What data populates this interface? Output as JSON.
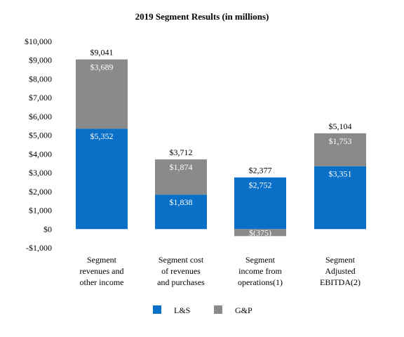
{
  "chart_data": {
    "type": "bar",
    "stacked": true,
    "title": "2019 Segment Results (in millions)",
    "categories": [
      [
        "Segment",
        "revenues and",
        "other income"
      ],
      [
        "Segment cost",
        "of revenues",
        "and purchases"
      ],
      [
        "Segment",
        "income from",
        "operations(1)"
      ],
      [
        "Segment",
        "Adjusted",
        "EBITDA(2)"
      ]
    ],
    "series": [
      {
        "name": "L&S",
        "color": "#0a6fc7",
        "values": [
          5352,
          1838,
          2752,
          3351
        ],
        "labels": [
          "$5,352",
          "$1,838",
          "$2,752",
          "$3,351"
        ]
      },
      {
        "name": "G&P",
        "color": "#8a8a8a",
        "values": [
          3689,
          1874,
          -375,
          1753
        ],
        "labels": [
          "$3,689",
          "$1,874",
          "$(375)",
          "$1,753"
        ]
      }
    ],
    "totals": [
      9041,
      3712,
      2377,
      5104
    ],
    "total_labels": [
      "$9,041",
      "$3,712",
      "$2,377",
      "$5,104"
    ],
    "ylim": [
      -1000,
      10000
    ],
    "yticks": [
      -1000,
      0,
      1000,
      2000,
      3000,
      4000,
      5000,
      6000,
      7000,
      8000,
      9000,
      10000
    ],
    "ytick_labels": [
      "-$1,000",
      "$0",
      "$1,000",
      "$2,000",
      "$3,000",
      "$4,000",
      "$5,000",
      "$6,000",
      "$7,000",
      "$8,000",
      "$9,000",
      "$10,000"
    ],
    "grid": false,
    "legend_position": "bottom-center"
  }
}
